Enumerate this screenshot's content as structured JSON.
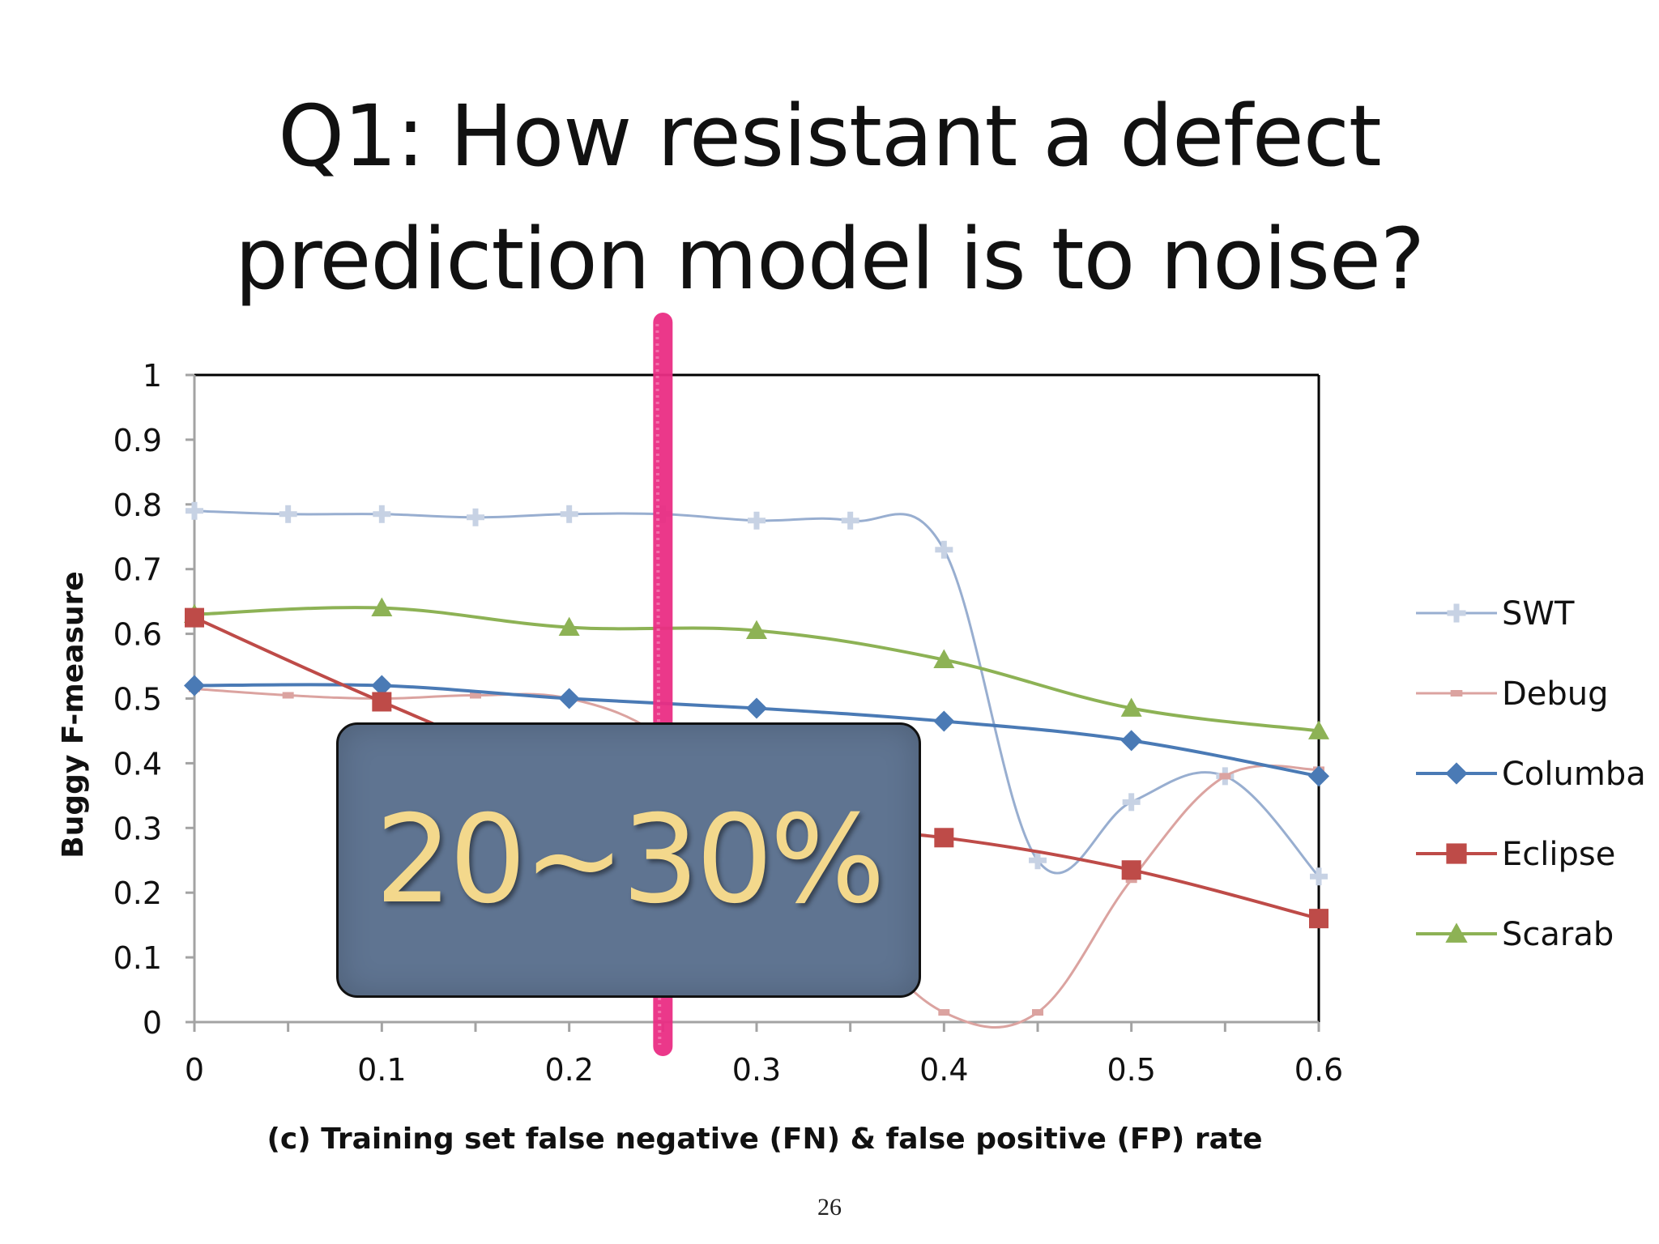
{
  "slide": {
    "title_line1": "Q1: How resistant a defect",
    "title_line2": "prediction model is to noise?",
    "page_number": "26",
    "overlay_label": "20~30%",
    "marker_color": "#ea2e84",
    "overlay_color": "#5f7491",
    "overlay_text_color": "#f3d88c"
  },
  "chart_data": {
    "type": "line",
    "xlabel": "(c) Training set false negative (FN) & false positive (FP) rate",
    "ylabel": "Buggy F-measure",
    "xlim": [
      0,
      0.6
    ],
    "ylim": [
      0,
      1
    ],
    "x_ticks": [
      "0",
      "0.1",
      "0.2",
      "0.3",
      "0.4",
      "0.5",
      "0.6"
    ],
    "y_ticks": [
      "0",
      "0.1",
      "0.2",
      "0.3",
      "0.4",
      "0.5",
      "0.6",
      "0.7",
      "0.8",
      "0.9",
      "1"
    ],
    "grid": false,
    "legend_position": "right",
    "vertical_marker_x": 0.25,
    "series": [
      {
        "name": "SWT",
        "color": "#98aed0",
        "marker": "plus",
        "x": [
          0,
          0.05,
          0.1,
          0.15,
          0.2,
          0.25,
          0.3,
          0.35,
          0.4,
          0.45,
          0.5,
          0.55,
          0.6
        ],
        "y": [
          0.79,
          0.785,
          0.785,
          0.78,
          0.785,
          0.785,
          0.775,
          0.775,
          0.73,
          0.25,
          0.34,
          0.38,
          0.225
        ]
      },
      {
        "name": "Debug",
        "color": "#dba3a0",
        "marker": "dash",
        "x": [
          0,
          0.05,
          0.1,
          0.15,
          0.2,
          0.25,
          0.3,
          0.35,
          0.4,
          0.45,
          0.5,
          0.55,
          0.6
        ],
        "y": [
          0.515,
          0.505,
          0.5,
          0.505,
          0.5,
          0.44,
          0.3,
          0.15,
          0.015,
          0.015,
          0.22,
          0.38,
          0.39
        ]
      },
      {
        "name": "Columba",
        "color": "#4a7ab5",
        "marker": "diamond",
        "x": [
          0,
          0.1,
          0.2,
          0.3,
          0.4,
          0.5,
          0.6
        ],
        "y": [
          0.52,
          0.52,
          0.5,
          0.485,
          0.465,
          0.435,
          0.38
        ]
      },
      {
        "name": "Eclipse",
        "color": "#be4b48",
        "marker": "square",
        "x": [
          0,
          0.1,
          0.2,
          0.3,
          0.4,
          0.5,
          0.6
        ],
        "y": [
          0.625,
          0.495,
          0.38,
          0.31,
          0.285,
          0.235,
          0.16
        ]
      },
      {
        "name": "Scarab",
        "color": "#8db255",
        "marker": "triangle",
        "x": [
          0,
          0.1,
          0.2,
          0.3,
          0.4,
          0.5,
          0.6
        ],
        "y": [
          0.63,
          0.64,
          0.61,
          0.605,
          0.56,
          0.485,
          0.45
        ]
      }
    ]
  }
}
